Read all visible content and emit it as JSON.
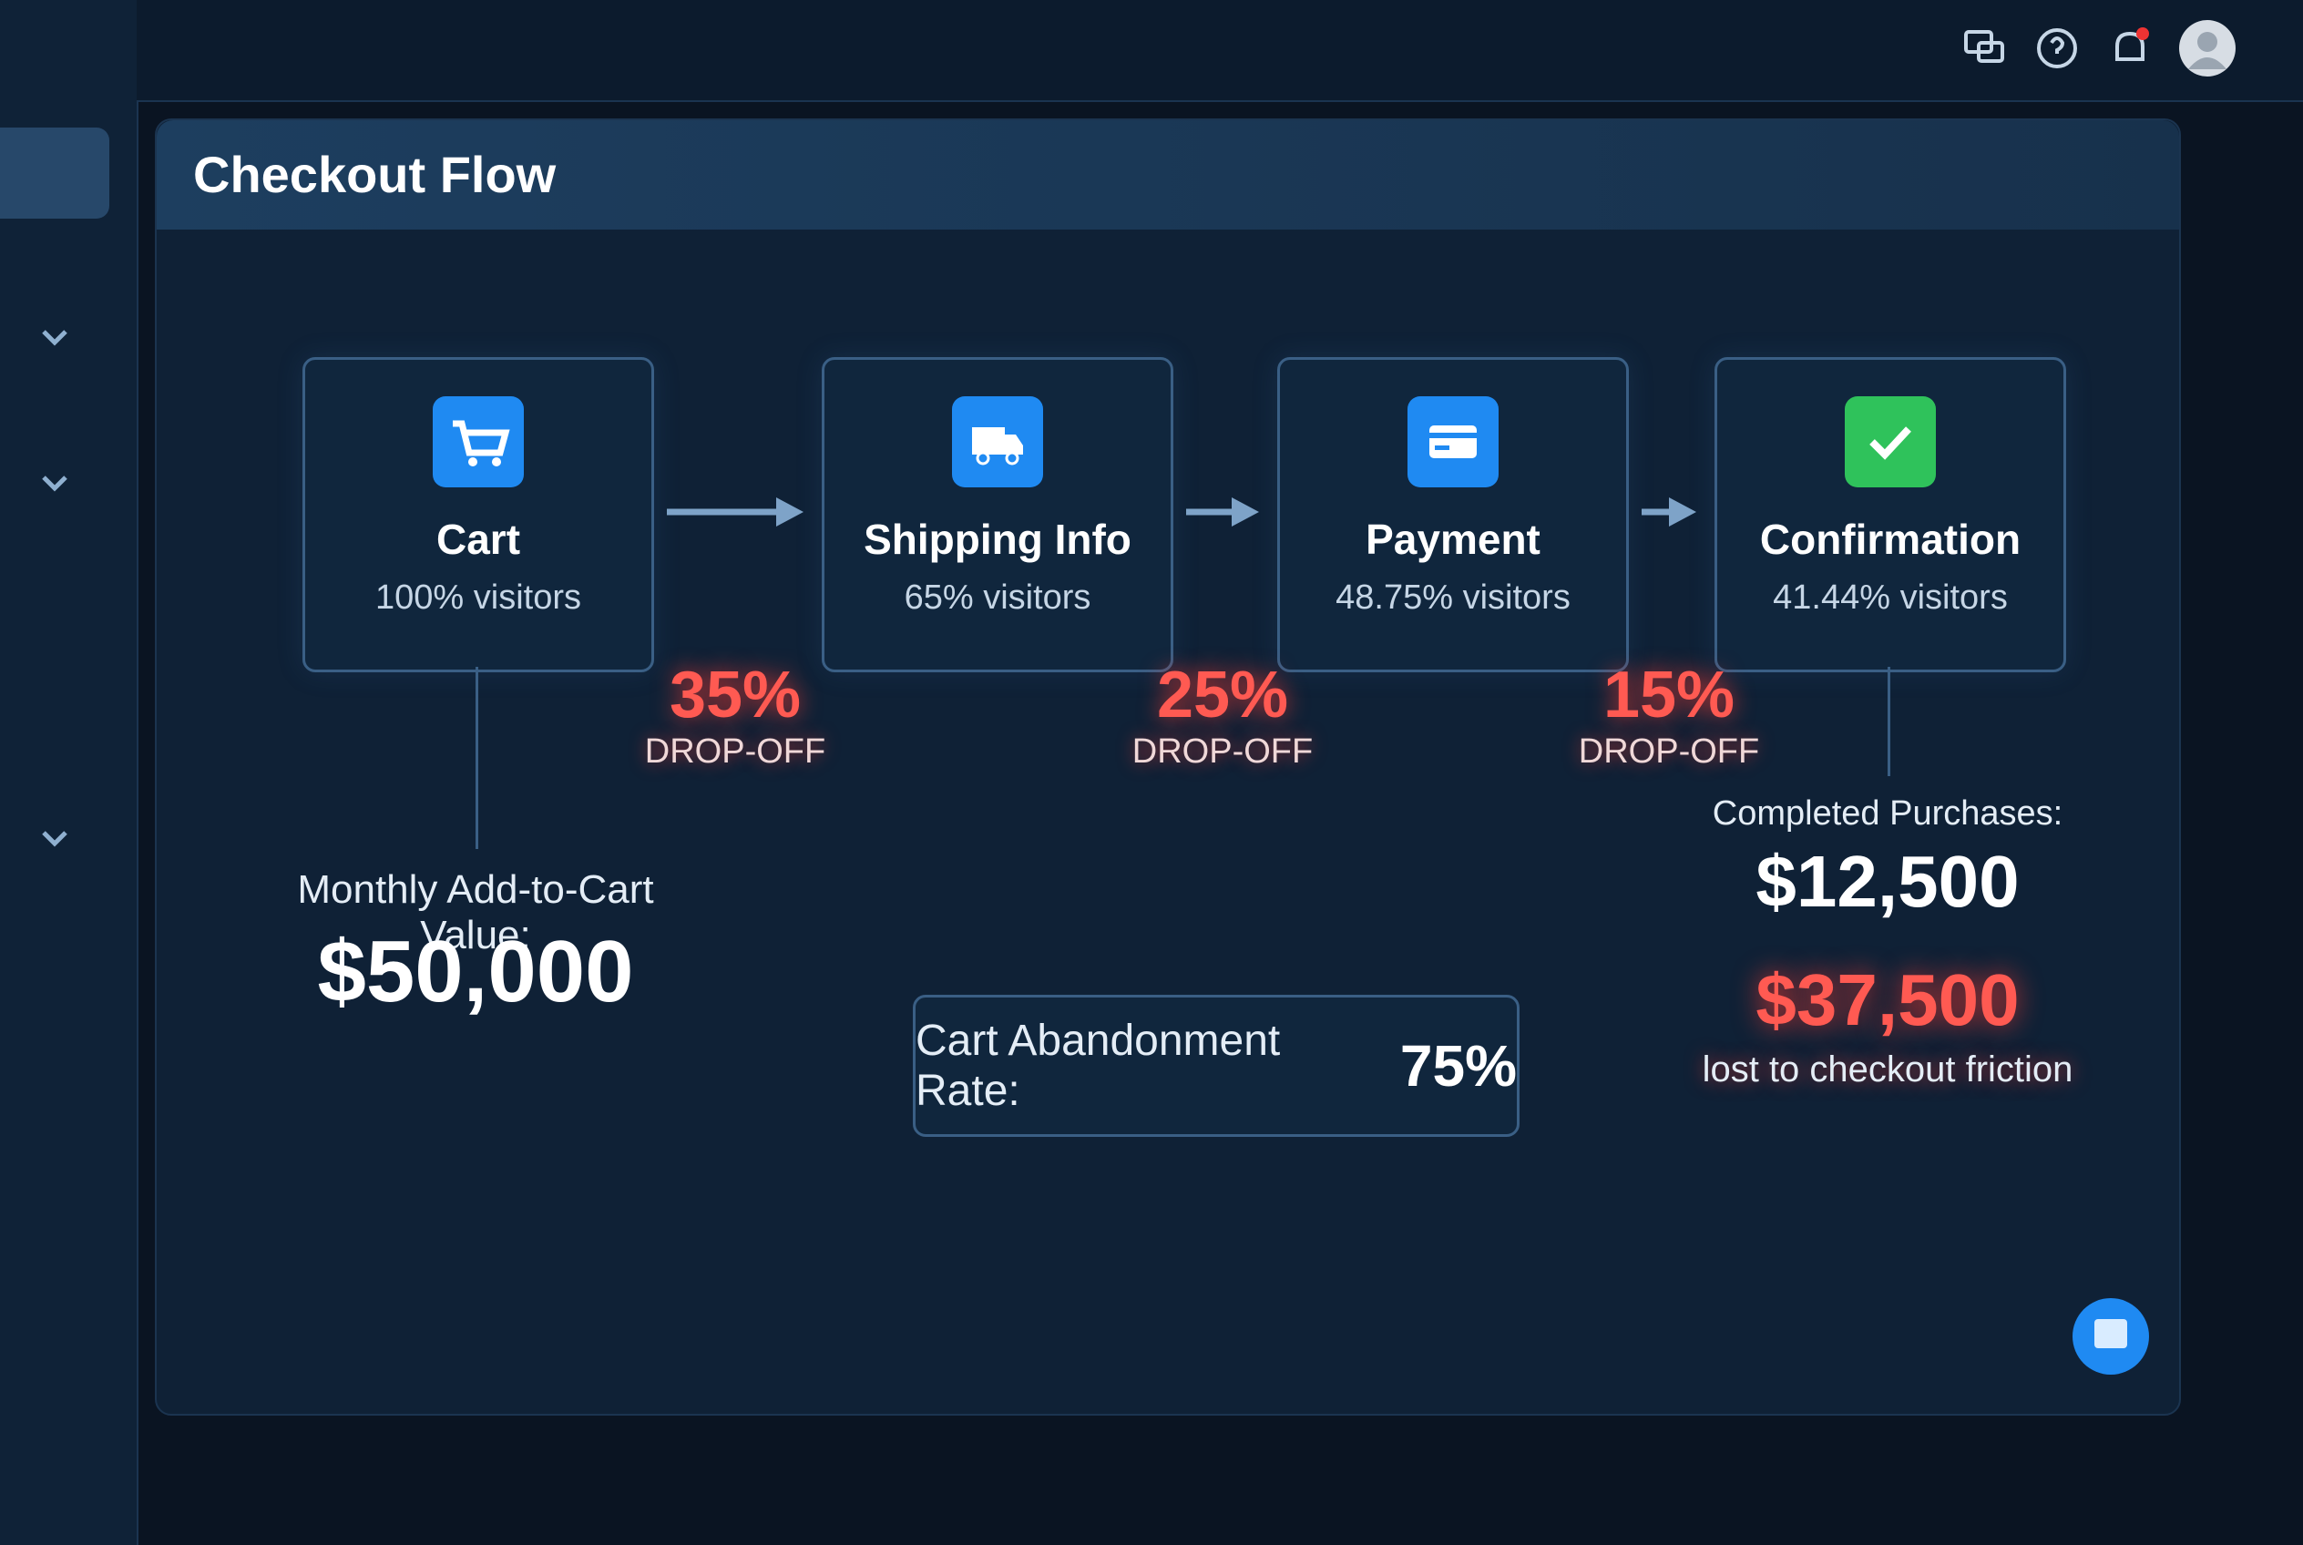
{
  "header": {
    "title": "Checkout Flow"
  },
  "steps": [
    {
      "label": "Cart",
      "visitors": "100% visitors",
      "icon_color": "#1f8af2"
    },
    {
      "label": "Shipping Info",
      "visitors": "65% visitors",
      "icon_color": "#1f8af2"
    },
    {
      "label": "Payment",
      "visitors": "48.75% visitors",
      "icon_color": "#1f8af2"
    },
    {
      "label": "Confirmation",
      "visitors": "41.44% visitors",
      "icon_color": "#2fc25b"
    }
  ],
  "drop_offs": [
    {
      "percent": "35%",
      "label": "DROP-OFF"
    },
    {
      "percent": "25%",
      "label": "DROP-OFF"
    },
    {
      "percent": "15%",
      "label": "DROP-OFF"
    }
  ],
  "add_to_cart": {
    "label": "Monthly Add-to-Cart Value:",
    "value": "$50,000"
  },
  "completed": {
    "label": "Completed Purchases:",
    "value": "$12,500"
  },
  "lost": {
    "value": "$37,500",
    "label": "lost to checkout friction"
  },
  "abandonment": {
    "label": "Cart Abandonment Rate:",
    "value": "75%"
  }
}
